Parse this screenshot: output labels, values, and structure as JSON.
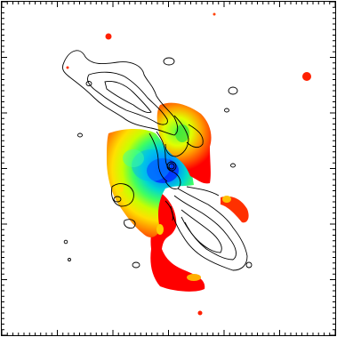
{
  "figure": {
    "description_visible_text": "",
    "colormap": [
      "#0000ff",
      "#00a0ff",
      "#00e0a0",
      "#40ff40",
      "#c0ff00",
      "#ffff00",
      "#ffa000",
      "#ff3000",
      "#ff0000"
    ],
    "contour_color": "#000000",
    "frame_color": "#000000",
    "background": "#ffffff"
  }
}
